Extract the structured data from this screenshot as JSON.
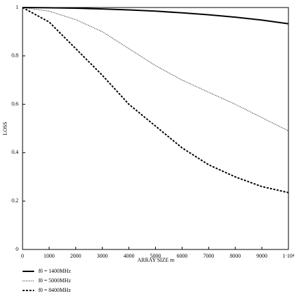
{
  "chart_data": {
    "type": "line",
    "xlabel": "ARRAY SIZE m",
    "ylabel": "LOSS",
    "x": [
      0,
      1000,
      2000,
      3000,
      4000,
      5000,
      6000,
      7000,
      8000,
      9000,
      10000
    ],
    "series": [
      {
        "name": "f0 = 1400MHz",
        "color": "#000000",
        "style": "solid",
        "values": [
          1,
          0.999,
          0.997,
          0.994,
          0.99,
          0.985,
          0.978,
          0.97,
          0.96,
          0.948,
          0.933
        ]
      },
      {
        "name": "f0 = 5000MHz",
        "color": "#000000",
        "style": "dotted",
        "values": [
          1,
          0.985,
          0.95,
          0.9,
          0.83,
          0.76,
          0.7,
          0.65,
          0.6,
          0.545,
          0.49
        ]
      },
      {
        "name": "f0 = 8400MHz",
        "color": "#000000",
        "style": "dashed",
        "values": [
          1,
          0.94,
          0.83,
          0.72,
          0.6,
          0.51,
          0.42,
          0.35,
          0.3,
          0.26,
          0.235
        ]
      }
    ],
    "xlim": [
      0,
      10000
    ],
    "ylim": [
      0,
      1
    ],
    "xticks": [
      0,
      1000,
      2000,
      3000,
      4000,
      5000,
      6000,
      7000,
      8000,
      9000,
      {
        "value": 10000,
        "label": "1·10⁴"
      }
    ],
    "yticks": [
      0,
      0.2,
      0.4,
      0.6,
      0.8,
      1
    ],
    "grid": false,
    "legend": "below-left"
  }
}
